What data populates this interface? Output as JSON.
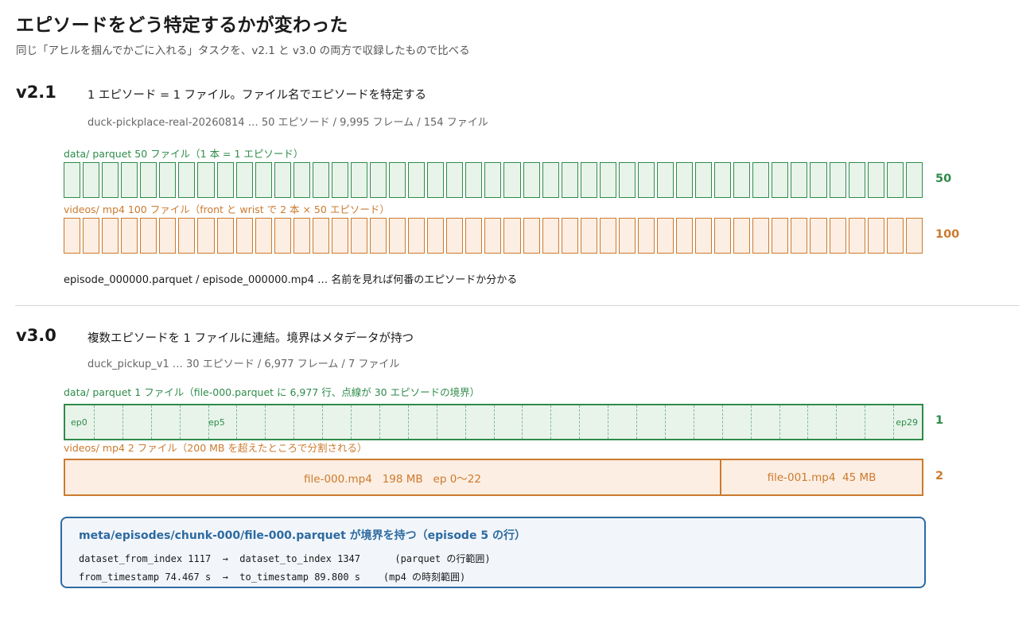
{
  "title": "エピソードをどう特定するかが変わった",
  "subtitle": "同じ「アヒルを掴んでかごに入れる」タスクを、v2.1 と v3.0 の両方で収録したもので比べる",
  "v21": {
    "version": "v2.1",
    "heading": "1 エピソード = 1 ファイル。ファイル名でエピソードを特定する",
    "meta": "duck-pickplace-real-20260814 … 50 エピソード / 9,995 フレーム / 154 ファイル",
    "data_label": "data/  parquet 50 ファイル（1 本 = 1 エピソード）",
    "data_count": "50",
    "data_cells": 45,
    "videos_label": "videos/  mp4 100 ファイル（front と wrist で 2 本 × 50 エピソード）",
    "videos_count": "100",
    "video_cells": 45,
    "note": "episode_000000.parquet / episode_000000.mp4 … 名前を見れば何番のエピソードか分かる",
    "colors": {
      "data": "#2e8b4a",
      "videos": "#cc7a2e"
    }
  },
  "v30": {
    "version": "v3.0",
    "heading": "複数エピソードを 1 ファイルに連結。境界はメタデータが持つ",
    "meta": "duck_pickup_v1 … 30 エピソード / 6,977 フレーム / 7 ファイル",
    "data_label": "data/  parquet 1 ファイル（file-000.parquet に 6,977 行、点線が 30 エピソードの境界）",
    "data_count": "1",
    "episode_boundaries": 30,
    "ep_labels": {
      "first": "ep0",
      "mid": "ep5",
      "last": "ep29"
    },
    "videos_label": "videos/  mp4 2 ファイル（200 MB を超えたところで分割される）",
    "videos_count": "2",
    "video_files": [
      {
        "label": "file-000.mp4   198 MB   ep 0〜22",
        "share": 0.77
      },
      {
        "label": "file-001.mp4  45 MB",
        "share": 0.23
      }
    ],
    "meta_box": {
      "title": "meta/episodes/chunk-000/file-000.parquet が境界を持つ（episode 5 の行）",
      "line1": "dataset_from_index 1117  →  dataset_to_index 1347      (parquet の行範囲)",
      "line2": "from_timestamp 74.467 s  →  to_timestamp 89.800 s    (mp4 の時刻範囲)"
    }
  }
}
